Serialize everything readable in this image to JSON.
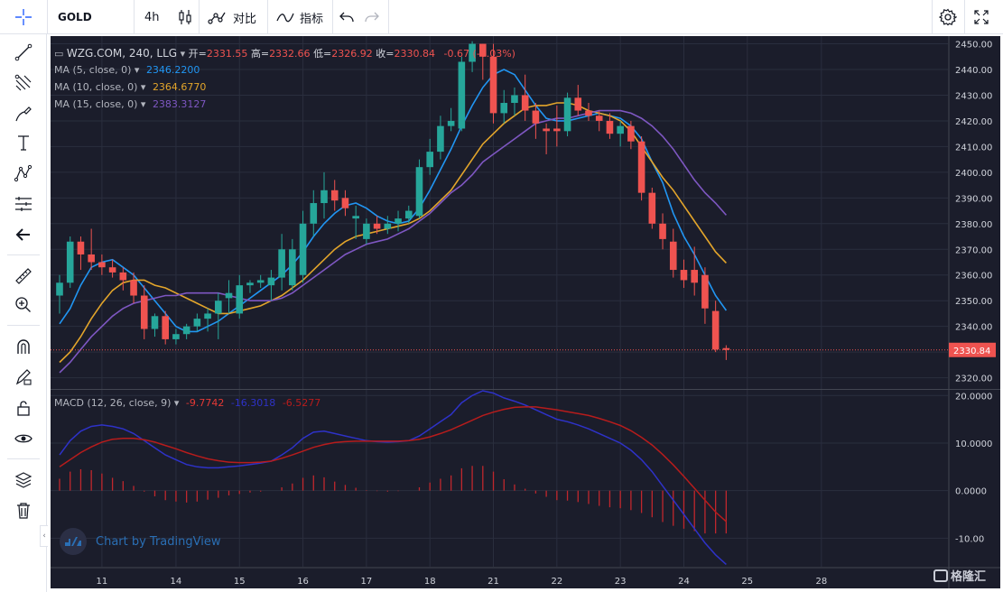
{
  "toolbar": {
    "symbol": "GOLD",
    "interval": "4h",
    "compare_label": "对比",
    "indicators_label": "指标"
  },
  "legend": {
    "title": "WZG.COM, 240, LLG",
    "open_label": "开=",
    "open": "2331.55",
    "high_label": "高=",
    "high": "2332.66",
    "low_label": "低=",
    "low": "2326.92",
    "close_label": "收=",
    "close": "2330.84",
    "change": "-0.67 (-0.03%)",
    "ma5_label": "MA (5, close, 0)",
    "ma5_value": "2346.2200",
    "ma10_label": "MA (10, close, 0)",
    "ma10_value": "2364.6770",
    "ma15_label": "MA (15, close, 0)",
    "ma15_value": "2383.3127",
    "macd_label": "MACD (12, 26, close, 9)",
    "macd_v1": "-9.7742",
    "macd_v2": "-16.3018",
    "macd_v3": "-6.5277"
  },
  "branding": {
    "text": "Chart by TradingView"
  },
  "watermark": {
    "text": "格隆汇"
  },
  "colors": {
    "up": "#26a69a",
    "down": "#ef5350",
    "ma5": "#2196f3",
    "ma10": "#e3a52b",
    "ma15": "#7e57c2",
    "macd": "#2e32c8",
    "signal": "#b71c1c",
    "price_line": "#ef5350"
  },
  "chart_data": [
    {
      "type": "candlestick",
      "x_ticks": [
        "11",
        "14",
        "15",
        "16",
        "17",
        "18",
        "21",
        "22",
        "23",
        "24",
        "25",
        "28"
      ],
      "y_ticks": [
        2320,
        2330,
        2340,
        2350,
        2360,
        2370,
        2380,
        2390,
        2400,
        2410,
        2420,
        2430,
        2440,
        2450
      ],
      "ylim": [
        2316,
        2453
      ],
      "last_price_label": "2330.84",
      "ohlc": [
        [
          2352,
          2360,
          2345,
          2357
        ],
        [
          2357,
          2375,
          2355,
          2373
        ],
        [
          2373,
          2375,
          2362,
          2368
        ],
        [
          2368,
          2378,
          2362,
          2365
        ],
        [
          2365,
          2368,
          2360,
          2363
        ],
        [
          2363,
          2366,
          2359,
          2361
        ],
        [
          2361,
          2363,
          2354,
          2358
        ],
        [
          2358,
          2361,
          2349,
          2352
        ],
        [
          2352,
          2356,
          2335,
          2339
        ],
        [
          2339,
          2345,
          2336,
          2344
        ],
        [
          2344,
          2346,
          2333,
          2335
        ],
        [
          2335,
          2339,
          2333,
          2337
        ],
        [
          2337,
          2341,
          2335,
          2340
        ],
        [
          2340,
          2345,
          2338,
          2343
        ],
        [
          2343,
          2347,
          2338,
          2345
        ],
        [
          2345,
          2353,
          2335,
          2350
        ],
        [
          2351,
          2358,
          2345,
          2353
        ],
        [
          2345,
          2360,
          2343,
          2356
        ],
        [
          2356,
          2358,
          2353,
          2357
        ],
        [
          2357,
          2360,
          2355,
          2358
        ],
        [
          2356,
          2362,
          2350,
          2359
        ],
        [
          2359,
          2376,
          2354,
          2370
        ],
        [
          2356,
          2374,
          2354,
          2370
        ],
        [
          2360,
          2385,
          2357,
          2380
        ],
        [
          2380,
          2393,
          2375,
          2388
        ],
        [
          2388,
          2400,
          2382,
          2393
        ],
        [
          2393,
          2397,
          2385,
          2389
        ],
        [
          2390,
          2393,
          2383,
          2386
        ],
        [
          2382,
          2387,
          2374,
          2383
        ],
        [
          2374,
          2382,
          2372,
          2380
        ],
        [
          2380,
          2383,
          2376,
          2378
        ],
        [
          2378,
          2383,
          2376,
          2380
        ],
        [
          2380,
          2385,
          2377,
          2382
        ],
        [
          2382,
          2387,
          2380,
          2385
        ],
        [
          2383,
          2405,
          2382,
          2402
        ],
        [
          2402,
          2413,
          2399,
          2408
        ],
        [
          2408,
          2422,
          2405,
          2418
        ],
        [
          2418,
          2425,
          2416,
          2420
        ],
        [
          2417,
          2445,
          2416,
          2443
        ],
        [
          2443,
          2451,
          2439,
          2450
        ],
        [
          2450,
          2450,
          2436,
          2445
        ],
        [
          2445,
          2450,
          2419,
          2423
        ],
        [
          2423,
          2432,
          2419,
          2427
        ],
        [
          2427,
          2433,
          2422,
          2430
        ],
        [
          2430,
          2438,
          2420,
          2424
        ],
        [
          2424,
          2427,
          2413,
          2419
        ],
        [
          2417,
          2419,
          2407,
          2416
        ],
        [
          2417,
          2426,
          2410,
          2416
        ],
        [
          2416,
          2431,
          2414,
          2429
        ],
        [
          2429,
          2434,
          2422,
          2424
        ],
        [
          2424,
          2427,
          2420,
          2422
        ],
        [
          2422,
          2424,
          2416,
          2420
        ],
        [
          2420,
          2423,
          2413,
          2415
        ],
        [
          2415,
          2420,
          2410,
          2418
        ],
        [
          2418,
          2420,
          2409,
          2412
        ],
        [
          2412,
          2414,
          2389,
          2392
        ],
        [
          2392,
          2394,
          2378,
          2380
        ],
        [
          2380,
          2384,
          2370,
          2374
        ],
        [
          2373,
          2378,
          2359,
          2362
        ],
        [
          2362,
          2366,
          2355,
          2358
        ],
        [
          2362,
          2371,
          2352,
          2357
        ],
        [
          2360,
          2363,
          2341,
          2347
        ],
        [
          2346,
          2350,
          2330,
          2331
        ],
        [
          2331.55,
          2332.66,
          2326.92,
          2330.84
        ]
      ],
      "series": [
        {
          "name": "MA (5, close, 0)",
          "values": [
            2341,
            2347,
            2356,
            2363,
            2365,
            2366,
            2363,
            2360,
            2355,
            2350,
            2345,
            2340,
            2338,
            2338,
            2340,
            2342,
            2345,
            2348,
            2351,
            2354,
            2357,
            2360,
            2364,
            2369,
            2375,
            2380,
            2384,
            2387,
            2388,
            2386,
            2383,
            2381,
            2380,
            2381,
            2386,
            2393,
            2401,
            2409,
            2418,
            2426,
            2433,
            2438,
            2440,
            2438,
            2432,
            2426,
            2421,
            2420,
            2420,
            2421,
            2422,
            2423,
            2422,
            2421,
            2418,
            2413,
            2404,
            2396,
            2384,
            2375,
            2368,
            2360,
            2352,
            2346.22
          ]
        },
        {
          "name": "MA (10, close, 0)",
          "values": [
            2326,
            2330,
            2336,
            2343,
            2349,
            2354,
            2357,
            2358,
            2358,
            2356,
            2355,
            2353,
            2351,
            2349,
            2347,
            2345,
            2345,
            2346,
            2347,
            2348,
            2350,
            2352,
            2355,
            2358,
            2362,
            2366,
            2370,
            2373,
            2375,
            2376,
            2377,
            2378,
            2379,
            2380,
            2382,
            2385,
            2389,
            2393,
            2399,
            2405,
            2411,
            2415,
            2419,
            2422,
            2425,
            2426,
            2426,
            2427,
            2427,
            2426,
            2424,
            2423,
            2422,
            2420,
            2416,
            2410,
            2404,
            2398,
            2393,
            2387,
            2381,
            2375,
            2369,
            2364.68
          ]
        },
        {
          "name": "MA (15, close, 0)",
          "values": [
            2322,
            2326,
            2331,
            2336,
            2340,
            2344,
            2347,
            2349,
            2350,
            2351,
            2352,
            2352,
            2353,
            2353,
            2353,
            2353,
            2352,
            2351,
            2350,
            2350,
            2350,
            2351,
            2353,
            2356,
            2359,
            2362,
            2365,
            2368,
            2370,
            2372,
            2373,
            2374,
            2376,
            2378,
            2381,
            2384,
            2388,
            2392,
            2395,
            2399,
            2404,
            2407,
            2410,
            2413,
            2416,
            2419,
            2420,
            2421,
            2421,
            2422,
            2423,
            2424,
            2424,
            2424,
            2423,
            2421,
            2418,
            2414,
            2409,
            2403,
            2397,
            2392,
            2388,
            2383.31
          ]
        }
      ]
    },
    {
      "type": "macd",
      "label": "MACD (12, 26, close, 9)",
      "y_ticks": [
        20.0,
        10.0,
        0.0,
        -10.0
      ],
      "ylim": [
        -16,
        21
      ],
      "series": [
        {
          "name": "macd",
          "values": [
            7.5,
            10.5,
            12.5,
            13.5,
            13.8,
            13.5,
            13.0,
            12.0,
            10.5,
            9.0,
            7.5,
            6.5,
            5.5,
            5.0,
            4.8,
            4.8,
            5.0,
            5.2,
            5.5,
            5.8,
            6.2,
            7.5,
            9.0,
            11.0,
            12.3,
            12.5,
            12.0,
            11.5,
            11.0,
            10.5,
            10.3,
            10.2,
            10.3,
            10.5,
            11.5,
            13.0,
            14.5,
            16.0,
            18.5,
            20.0,
            21.0,
            20.5,
            19.5,
            18.8,
            18.0,
            17.0,
            16.0,
            15.0,
            14.5,
            13.8,
            13.0,
            12.0,
            11.0,
            10.0,
            8.5,
            6.5,
            4.0,
            1.0,
            -2.0,
            -5.0,
            -8.0,
            -11.0,
            -13.5,
            -15.5
          ]
        },
        {
          "name": "signal",
          "values": [
            5.0,
            6.5,
            8.0,
            9.2,
            10.2,
            10.8,
            11.0,
            11.0,
            10.7,
            10.2,
            9.5,
            8.8,
            8.0,
            7.3,
            6.7,
            6.3,
            6.0,
            5.9,
            5.9,
            6.0,
            6.2,
            6.8,
            7.5,
            8.3,
            9.1,
            9.7,
            10.1,
            10.3,
            10.4,
            10.4,
            10.4,
            10.4,
            10.4,
            10.5,
            10.8,
            11.3,
            12.0,
            12.8,
            13.8,
            14.8,
            15.8,
            16.5,
            17.1,
            17.5,
            17.6,
            17.6,
            17.3,
            17.0,
            16.6,
            16.2,
            15.8,
            15.2,
            14.5,
            13.7,
            12.6,
            11.2,
            9.6,
            7.6,
            5.4,
            3.0,
            0.5,
            -2.0,
            -4.5,
            -6.5
          ]
        }
      ]
    }
  ]
}
